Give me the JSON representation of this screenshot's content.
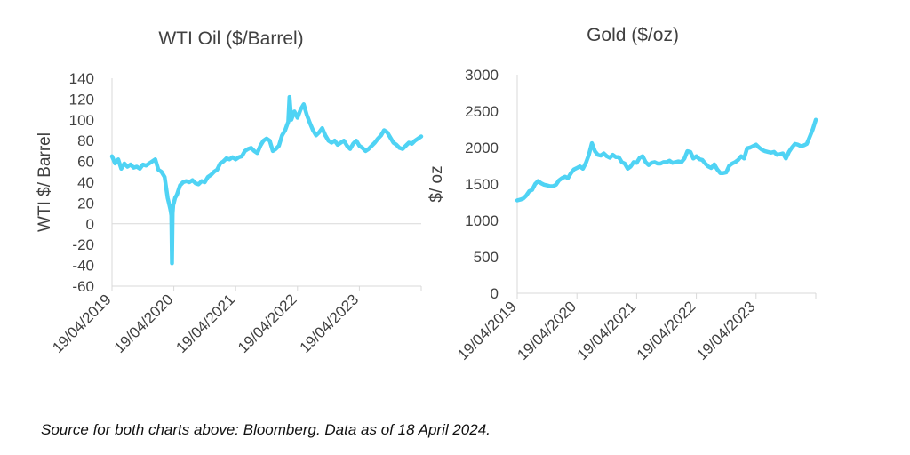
{
  "colors": {
    "line": "#4fd3f4",
    "axis": "#d9d9d9",
    "text": "#404040"
  },
  "chart_data": [
    {
      "type": "line",
      "title": "WTI Oil ($/Barrel)",
      "ylabel": "WTI $/ Barrel",
      "xlabel": "",
      "ylim": [
        -60,
        140
      ],
      "yticks": [
        "140",
        "120",
        "100",
        "80",
        "60",
        "40",
        "20",
        "0",
        "-20",
        "-40",
        "-60"
      ],
      "yvalues": [
        140,
        120,
        100,
        80,
        60,
        40,
        20,
        0,
        -20,
        -40,
        -60
      ],
      "x_start": 2019.3,
      "x_end": 2024.3,
      "xticks": [
        "19/04/2019",
        "19/04/2020",
        "19/04/2021",
        "19/04/2022",
        "19/04/2023"
      ],
      "xtick_positions": [
        2019.3,
        2020.3,
        2021.3,
        2022.3,
        2023.3
      ],
      "series": [
        {
          "name": "WTI Oil",
          "x": [
            2019.3,
            2019.35,
            2019.4,
            2019.45,
            2019.5,
            2019.55,
            2019.6,
            2019.65,
            2019.7,
            2019.75,
            2019.8,
            2019.85,
            2019.9,
            2019.95,
            2020.0,
            2020.05,
            2020.1,
            2020.15,
            2020.2,
            2020.22,
            2020.24,
            2020.25,
            2020.26,
            2020.27,
            2020.28,
            2020.29,
            2020.3,
            2020.32,
            2020.35,
            2020.4,
            2020.45,
            2020.5,
            2020.55,
            2020.6,
            2020.65,
            2020.7,
            2020.75,
            2020.8,
            2020.85,
            2020.9,
            2020.95,
            2021.0,
            2021.05,
            2021.1,
            2021.15,
            2021.2,
            2021.25,
            2021.3,
            2021.35,
            2021.4,
            2021.45,
            2021.5,
            2021.55,
            2021.6,
            2021.65,
            2021.7,
            2021.75,
            2021.8,
            2021.85,
            2021.9,
            2021.95,
            2022.0,
            2022.05,
            2022.1,
            2022.13,
            2022.15,
            2022.17,
            2022.2,
            2022.25,
            2022.3,
            2022.35,
            2022.4,
            2022.45,
            2022.5,
            2022.55,
            2022.6,
            2022.65,
            2022.7,
            2022.75,
            2022.8,
            2022.85,
            2022.9,
            2022.95,
            2023.0,
            2023.05,
            2023.1,
            2023.15,
            2023.2,
            2023.25,
            2023.3,
            2023.35,
            2023.4,
            2023.45,
            2023.5,
            2023.55,
            2023.6,
            2023.65,
            2023.7,
            2023.75,
            2023.8,
            2023.85,
            2023.9,
            2023.95,
            2024.0,
            2024.05,
            2024.1,
            2024.15,
            2024.2,
            2024.25,
            2024.3
          ],
          "y": [
            65,
            58,
            62,
            53,
            58,
            55,
            57,
            54,
            55,
            53,
            57,
            56,
            58,
            60,
            62,
            52,
            50,
            45,
            25,
            20,
            15,
            12,
            8,
            -38,
            10,
            18,
            20,
            25,
            28,
            37,
            40,
            41,
            40,
            42,
            39,
            38,
            41,
            40,
            45,
            47,
            50,
            52,
            58,
            60,
            63,
            62,
            64,
            62,
            64,
            65,
            70,
            72,
            73,
            70,
            68,
            75,
            80,
            82,
            80,
            70,
            72,
            75,
            85,
            90,
            95,
            98,
            122,
            100,
            108,
            102,
            110,
            115,
            105,
            97,
            90,
            85,
            88,
            92,
            85,
            80,
            78,
            80,
            76,
            78,
            80,
            75,
            72,
            77,
            80,
            75,
            73,
            70,
            72,
            75,
            78,
            82,
            85,
            90,
            88,
            83,
            78,
            76,
            73,
            72,
            75,
            78,
            77,
            80,
            82,
            84
          ]
        }
      ]
    },
    {
      "type": "line",
      "title": "Gold ($/oz)",
      "ylabel": "$/ oz",
      "xlabel": "",
      "ylim": [
        0,
        3000
      ],
      "yticks": [
        "3000",
        "2500",
        "2000",
        "1500",
        "1000",
        "500",
        "0"
      ],
      "yvalues": [
        3000,
        2500,
        2000,
        1500,
        1000,
        500,
        0
      ],
      "x_start": 2019.3,
      "x_end": 2024.3,
      "xticks": [
        "19/04/2019",
        "19/04/2020",
        "19/04/2021",
        "19/04/2022",
        "19/04/2023"
      ],
      "xtick_positions": [
        2019.3,
        2020.3,
        2021.3,
        2022.3,
        2023.3
      ],
      "series": [
        {
          "name": "Gold",
          "x": [
            2019.3,
            2019.35,
            2019.4,
            2019.45,
            2019.5,
            2019.55,
            2019.6,
            2019.65,
            2019.7,
            2019.75,
            2019.8,
            2019.85,
            2019.9,
            2019.95,
            2020.0,
            2020.05,
            2020.1,
            2020.15,
            2020.2,
            2020.25,
            2020.3,
            2020.35,
            2020.4,
            2020.45,
            2020.5,
            2020.55,
            2020.6,
            2020.65,
            2020.7,
            2020.75,
            2020.8,
            2020.85,
            2020.9,
            2020.95,
            2021.0,
            2021.05,
            2021.1,
            2021.15,
            2021.2,
            2021.25,
            2021.3,
            2021.35,
            2021.4,
            2021.45,
            2021.5,
            2021.55,
            2021.6,
            2021.65,
            2021.7,
            2021.75,
            2021.8,
            2021.85,
            2021.9,
            2021.95,
            2022.0,
            2022.05,
            2022.1,
            2022.15,
            2022.2,
            2022.25,
            2022.3,
            2022.35,
            2022.4,
            2022.45,
            2022.5,
            2022.55,
            2022.6,
            2022.65,
            2022.7,
            2022.75,
            2022.8,
            2022.85,
            2022.9,
            2022.95,
            2023.0,
            2023.05,
            2023.1,
            2023.15,
            2023.2,
            2023.25,
            2023.3,
            2023.35,
            2023.4,
            2023.45,
            2023.5,
            2023.55,
            2023.6,
            2023.65,
            2023.7,
            2023.75,
            2023.8,
            2023.85,
            2023.9,
            2023.95,
            2024.0,
            2024.05,
            2024.1,
            2024.15,
            2024.2,
            2024.25,
            2024.3
          ],
          "y": [
            1275,
            1285,
            1300,
            1340,
            1400,
            1420,
            1500,
            1540,
            1510,
            1490,
            1480,
            1470,
            1470,
            1490,
            1550,
            1580,
            1600,
            1580,
            1650,
            1700,
            1720,
            1740,
            1710,
            1790,
            1900,
            2060,
            1950,
            1900,
            1890,
            1920,
            1880,
            1860,
            1900,
            1870,
            1870,
            1800,
            1780,
            1710,
            1740,
            1800,
            1790,
            1860,
            1880,
            1800,
            1760,
            1790,
            1800,
            1780,
            1780,
            1800,
            1800,
            1820,
            1790,
            1800,
            1810,
            1800,
            1850,
            1950,
            1940,
            1850,
            1880,
            1840,
            1830,
            1780,
            1740,
            1720,
            1770,
            1700,
            1650,
            1650,
            1660,
            1750,
            1780,
            1800,
            1830,
            1880,
            1850,
            1990,
            2000,
            2020,
            2040,
            2000,
            1970,
            1950,
            1940,
            1930,
            1940,
            1900,
            1910,
            1920,
            1850,
            1940,
            2000,
            2050,
            2040,
            2020,
            2030,
            2050,
            2150,
            2250,
            2380
          ]
        }
      ]
    }
  ],
  "footer": {
    "source": "Source for both charts above: Bloomberg. Data as of 18 April 2024."
  }
}
